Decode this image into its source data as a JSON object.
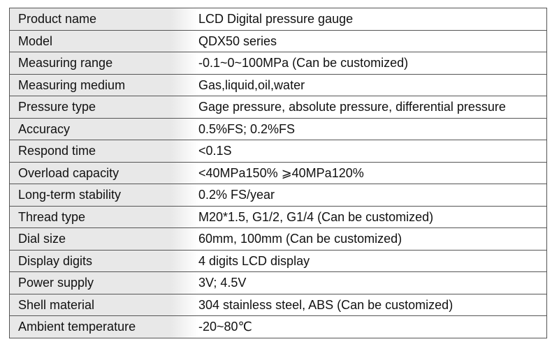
{
  "spec_table": {
    "rows": [
      {
        "label": "Product name",
        "value": "LCD Digital pressure gauge"
      },
      {
        "label": "Model",
        "value": "QDX50 series"
      },
      {
        "label": "Measuring range",
        "value": "-0.1~0~100MPa (Can be customized)"
      },
      {
        "label": "Measuring medium",
        "value": "Gas,liquid,oil,water"
      },
      {
        "label": "Pressure type",
        "value": "Gage pressure, absolute pressure, differential pressure"
      },
      {
        "label": "Accuracy",
        "value": "0.5%FS; 0.2%FS"
      },
      {
        "label": "Respond time",
        "value": "<0.1S"
      },
      {
        "label": "Overload capacity",
        "value": "<40MPa150% ⩾40MPa120%"
      },
      {
        "label": "Long-term stability",
        "value": "0.2% FS/year"
      },
      {
        "label": "Thread type",
        "value": "M20*1.5, G1/2, G1/4  (Can be customized)"
      },
      {
        "label": "Dial size",
        "value": "60mm, 100mm (Can be customized)"
      },
      {
        "label": "Display digits",
        "value": "4 digits LCD display"
      },
      {
        "label": "Power supply",
        "value": "3V; 4.5V"
      },
      {
        "label": "Shell material",
        "value": "304 stainless steel, ABS (Can be customized)"
      },
      {
        "label": "Ambient temperature",
        "value": "-20~80℃"
      }
    ]
  }
}
